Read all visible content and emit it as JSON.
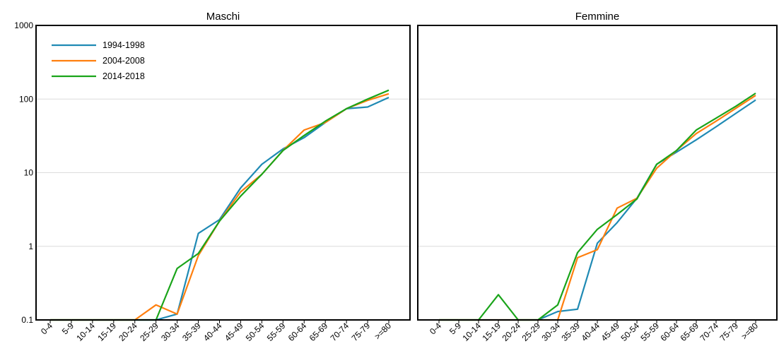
{
  "chart_data": {
    "type": "line",
    "y_scale": "log",
    "ylim": [
      0.1,
      1000
    ],
    "yticks": [
      "0.1",
      "1",
      "10",
      "100",
      "1000"
    ],
    "grid": "horizontal",
    "legend_position": "top-left",
    "categories": [
      "0-4",
      "5-9",
      "10-14",
      "15-19",
      "20-24",
      "25-29",
      "30-34",
      "35-39",
      "40-44",
      "45-49",
      "50-54",
      "55-59",
      "60-64",
      "65-69",
      "70-74",
      "75-79",
      ">=80"
    ],
    "series_colors": {
      "1994-1998": "#1f8ab4",
      "2004-2008": "#ff7f0e",
      "2014-2018": "#1aa41a"
    },
    "panels": [
      {
        "title": "Maschi",
        "series": [
          {
            "name": "1994-1998",
            "values": [
              0.1,
              0.1,
              0.1,
              0.1,
              0.1,
              0.1,
              0.12,
              1.5,
              2.3,
              6.2,
              13,
              21,
              30,
              48,
              74,
              78,
              105
            ]
          },
          {
            "name": "2004-2008",
            "values": [
              0.1,
              0.1,
              0.1,
              0.1,
              0.1,
              0.16,
              0.12,
              0.75,
              2.2,
              5.5,
              9.5,
              20,
              38,
              48,
              74,
              96,
              118
            ]
          },
          {
            "name": "2014-2018",
            "values": [
              0.1,
              0.1,
              0.1,
              0.1,
              0.1,
              0.1,
              0.5,
              0.8,
              2.2,
              4.8,
              9.5,
              20,
              32,
              50,
              74,
              100,
              132
            ]
          }
        ]
      },
      {
        "title": "Femmine",
        "series": [
          {
            "name": "1994-1998",
            "values": [
              0.1,
              0.1,
              0.1,
              0.1,
              0.1,
              0.1,
              0.13,
              0.14,
              1.1,
              2.1,
              4.5,
              13,
              19,
              28,
              42,
              64,
              97
            ]
          },
          {
            "name": "2004-2008",
            "values": [
              0.1,
              0.1,
              0.1,
              0.1,
              0.1,
              0.1,
              0.1,
              0.7,
              0.9,
              3.3,
              4.5,
              11.5,
              20,
              34,
              50,
              75,
              112
            ]
          },
          {
            "name": "2014-2018",
            "values": [
              0.1,
              0.1,
              0.1,
              0.22,
              0.1,
              0.1,
              0.16,
              0.82,
              1.7,
              2.7,
              4.4,
              13,
              20,
              38,
              55,
              80,
              120
            ]
          }
        ]
      }
    ]
  }
}
